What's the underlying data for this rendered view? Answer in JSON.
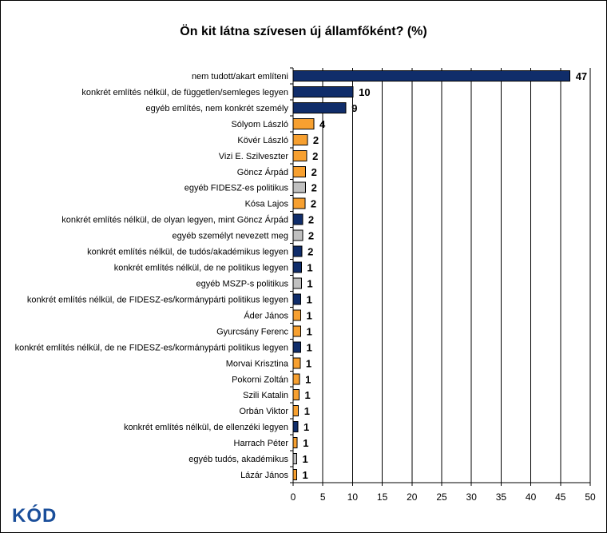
{
  "logo_text": "KÓD",
  "chart_data": {
    "type": "bar",
    "orientation": "horizontal",
    "title": "Ön kit látna szívesen új államfőként? (%)",
    "xlabel": "",
    "ylabel": "",
    "xlim": [
      0,
      50
    ],
    "xticks": [
      0,
      5,
      10,
      15,
      20,
      25,
      30,
      35,
      40,
      45,
      50
    ],
    "grid": true,
    "legend": "none",
    "colors": {
      "navy": "#102D6A",
      "orange": "#F7A030",
      "gray": "#C0C0C0"
    },
    "categories": [
      "nem tudott/akart említeni",
      "konkrét említés nélkül, de független/semleges legyen",
      "egyéb említés, nem konkrét személy",
      "Sólyom László",
      "Kövér László",
      "Vizi E. Szilveszter",
      "Göncz Árpád",
      "egyéb FIDESZ-es politikus",
      "Kósa Lajos",
      "konkrét említés nélkül, de olyan legyen, mint Göncz Árpád",
      "egyéb személyt nevezett meg",
      "konkrét említés nélkül, de tudós/akadémikus legyen",
      "konkrét említés nélkül, de ne politikus legyen",
      "egyéb MSZP-s politikus",
      "konkrét említés nélkül, de FIDESZ-es/kormánypárti politikus legyen",
      "Áder János",
      "Gyurcsány Ferenc",
      "konkrét említés nélkül, de ne FIDESZ-es/kormánypárti politikus legyen",
      "Morvai Krisztina",
      "Pokorni Zoltán",
      "Szili Katalin",
      "Orbán Viktor",
      "konkrét említés nélkül, de ellenzéki legyen",
      "Harrach Péter",
      "egyéb tudós, akadémikus",
      "Lázár János"
    ],
    "values": [
      46.6,
      10.1,
      8.9,
      3.5,
      2.4,
      2.3,
      2.1,
      2.1,
      2.0,
      1.6,
      1.6,
      1.5,
      1.4,
      1.4,
      1.3,
      1.3,
      1.3,
      1.3,
      1.2,
      1.1,
      1.0,
      0.9,
      0.8,
      0.7,
      0.6,
      0.6
    ],
    "labels": [
      "47",
      "10",
      "9",
      "4",
      "2",
      "2",
      "2",
      "2",
      "2",
      "2",
      "2",
      "2",
      "1",
      "1",
      "1",
      "1",
      "1",
      "1",
      "1",
      "1",
      "1",
      "1",
      "1",
      "1",
      "1",
      "1"
    ],
    "bar_colors": [
      "navy",
      "navy",
      "navy",
      "orange",
      "orange",
      "orange",
      "orange",
      "gray",
      "orange",
      "navy",
      "gray",
      "navy",
      "navy",
      "gray",
      "navy",
      "orange",
      "orange",
      "navy",
      "orange",
      "orange",
      "orange",
      "orange",
      "navy",
      "orange",
      "gray",
      "orange"
    ]
  }
}
